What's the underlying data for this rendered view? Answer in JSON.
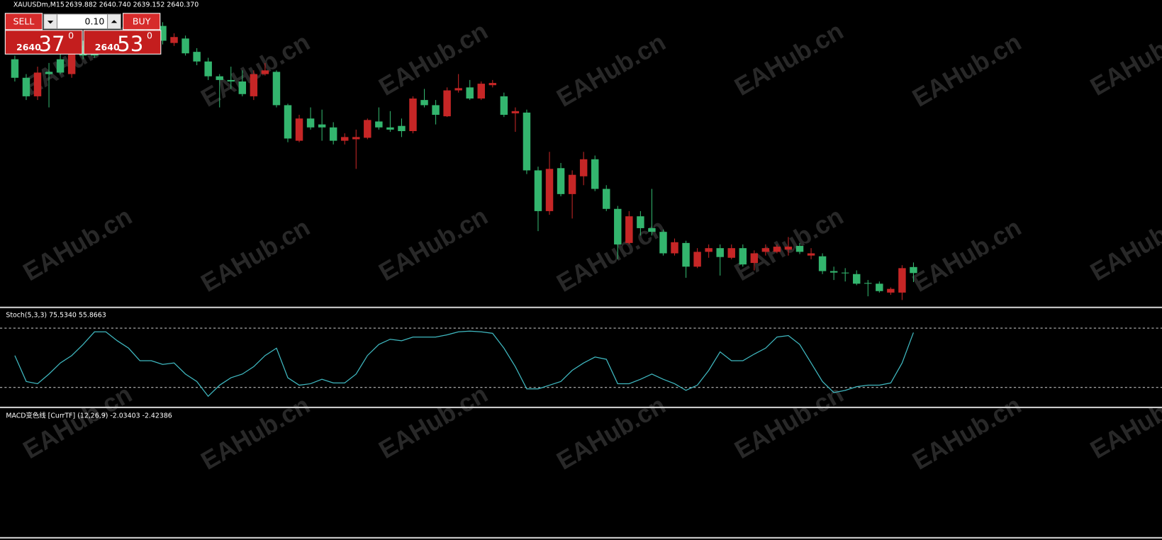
{
  "chart_data": {
    "type": "candlestick",
    "title": "XAUUSDm,M15",
    "ohlc_text": "2639.882 2640.740 2639.152 2640.370",
    "watermark": "EAHub.cn",
    "up_color": "#33b56e",
    "down_color": "#c62626",
    "ylim": [
      2637.4,
      2662
    ],
    "ohlc": [
      [
        2655.7,
        2657.5,
        2655.4,
        2657.2
      ],
      [
        2654.2,
        2656.0,
        2653.9,
        2655.7
      ],
      [
        2656.12,
        2656.6,
        2653.9,
        2654.2
      ],
      [
        2656.0,
        2656.9,
        2653.3,
        2656.18
      ],
      [
        2656.12,
        2658.4,
        2656.0,
        2657.2
      ],
      [
        2657.8,
        2658.4,
        2655.7,
        2656.0
      ],
      [
        2657.5,
        2658.7,
        2657.2,
        2658.28
      ],
      [
        2657.5,
        2658.7,
        2657.32,
        2658.4
      ],
      [
        2658.1,
        2659.0,
        2657.92,
        2658.7
      ],
      [
        2658.4,
        2659.3,
        2658.22,
        2659.0
      ],
      [
        2658.7,
        2659.6,
        2658.52,
        2659.3
      ],
      [
        2658.7,
        2660.08,
        2658.52,
        2659.6
      ],
      [
        2659.6,
        2660.2,
        2658.52,
        2658.7
      ],
      [
        2658.7,
        2660.2,
        2658.4,
        2659.9
      ],
      [
        2659.0,
        2659.3,
        2658.28,
        2658.52
      ],
      [
        2657.68,
        2659.12,
        2657.5,
        2658.88
      ],
      [
        2657.02,
        2658.1,
        2656.72,
        2657.8
      ],
      [
        2655.82,
        2657.32,
        2655.52,
        2657.02
      ],
      [
        2655.52,
        2656.0,
        2653.3,
        2655.82
      ],
      [
        2655.4,
        2656.6,
        2654.8,
        2655.52
      ],
      [
        2654.38,
        2656.3,
        2654.2,
        2655.4
      ],
      [
        2656.0,
        2656.3,
        2653.9,
        2654.2
      ],
      [
        2656.3,
        2656.9,
        2655.88,
        2656.0
      ],
      [
        2653.48,
        2656.3,
        2653.3,
        2656.18
      ],
      [
        2650.78,
        2653.6,
        2650.48,
        2653.48
      ],
      [
        2652.4,
        2652.7,
        2650.48,
        2650.6
      ],
      [
        2651.68,
        2653.3,
        2651.5,
        2652.4
      ],
      [
        2651.68,
        2653.12,
        2650.6,
        2651.92
      ],
      [
        2650.6,
        2652.1,
        2650.3,
        2651.68
      ],
      [
        2650.9,
        2651.2,
        2650.3,
        2650.6
      ],
      [
        2650.9,
        2651.5,
        2648.32,
        2650.72
      ],
      [
        2652.28,
        2652.4,
        2650.72,
        2650.84
      ],
      [
        2651.68,
        2653.3,
        2651.5,
        2652.16
      ],
      [
        2651.5,
        2653.0,
        2651.32,
        2651.68
      ],
      [
        2651.38,
        2652.4,
        2650.9,
        2651.8
      ],
      [
        2654.02,
        2654.2,
        2651.2,
        2651.38
      ],
      [
        2653.48,
        2654.8,
        2653.3,
        2653.9
      ],
      [
        2652.7,
        2653.9,
        2651.92,
        2653.48
      ],
      [
        2654.68,
        2654.92,
        2652.52,
        2652.58
      ],
      [
        2654.86,
        2656.0,
        2654.5,
        2654.68
      ],
      [
        2654.02,
        2655.52,
        2653.9,
        2654.92
      ],
      [
        2655.22,
        2655.4,
        2653.9,
        2654.02
      ],
      [
        2655.28,
        2655.52,
        2654.92,
        2655.1
      ],
      [
        2652.7,
        2654.5,
        2652.52,
        2654.2
      ],
      [
        2653.0,
        2653.3,
        2651.32,
        2652.82
      ],
      [
        2648.2,
        2653.12,
        2647.9,
        2652.88
      ],
      [
        2644.9,
        2648.5,
        2643.28,
        2648.2
      ],
      [
        2648.32,
        2649.7,
        2644.6,
        2644.9
      ],
      [
        2646.28,
        2648.8,
        2646.1,
        2648.38
      ],
      [
        2647.84,
        2648.2,
        2644.3,
        2646.28
      ],
      [
        2649.1,
        2649.7,
        2647.0,
        2647.72
      ],
      [
        2646.7,
        2649.4,
        2646.52,
        2649.1
      ],
      [
        2645.08,
        2647.0,
        2644.9,
        2646.7
      ],
      [
        2642.2,
        2645.32,
        2641.0,
        2645.08
      ],
      [
        2644.48,
        2644.9,
        2642.2,
        2642.32
      ],
      [
        2643.52,
        2644.9,
        2642.92,
        2644.48
      ],
      [
        2643.22,
        2646.7,
        2642.92,
        2643.52
      ],
      [
        2641.48,
        2643.4,
        2641.3,
        2643.22
      ],
      [
        2642.38,
        2642.68,
        2641.3,
        2641.48
      ],
      [
        2640.4,
        2642.5,
        2639.5,
        2642.32
      ],
      [
        2641.6,
        2641.9,
        2640.28,
        2640.4
      ],
      [
        2641.9,
        2642.2,
        2641.12,
        2641.6
      ],
      [
        2641.18,
        2642.2,
        2639.68,
        2641.9
      ],
      [
        2641.9,
        2642.2,
        2641.0,
        2641.12
      ],
      [
        2640.58,
        2642.2,
        2640.4,
        2641.9
      ],
      [
        2641.48,
        2641.72,
        2640.1,
        2640.7
      ],
      [
        2641.9,
        2642.2,
        2641.3,
        2641.6
      ],
      [
        2642.02,
        2642.2,
        2641.48,
        2641.6
      ],
      [
        2642.02,
        2642.8,
        2641.3,
        2641.78
      ],
      [
        2641.6,
        2642.32,
        2641.42,
        2642.08
      ],
      [
        2641.48,
        2641.9,
        2641.0,
        2641.3
      ],
      [
        2640.04,
        2641.48,
        2639.8,
        2641.24
      ],
      [
        2639.92,
        2640.4,
        2639.32,
        2640.04
      ],
      [
        2639.86,
        2640.28,
        2639.2,
        2639.92
      ],
      [
        2639.02,
        2640.1,
        2638.9,
        2639.8
      ],
      [
        2639.02,
        2639.32,
        2638.0,
        2639.08
      ],
      [
        2638.42,
        2639.2,
        2638.3,
        2639.02
      ],
      [
        2638.6,
        2638.72,
        2638.12,
        2638.3
      ],
      [
        2640.28,
        2640.52,
        2637.7,
        2638.3
      ],
      [
        2639.882,
        2640.74,
        2639.152,
        2640.37
      ]
    ],
    "stoch": {
      "label": "Stoch(5,3,3) 75.5340 55.8663",
      "color": "#3fb8c0",
      "ylim": [
        1.25,
        98.75
      ],
      "levels": [
        20,
        80
      ],
      "values": [
        52.25,
        26,
        23.75,
        33.5,
        44.75,
        52.25,
        63.5,
        76.25,
        76.25,
        67.25,
        59.75,
        47,
        47,
        43.25,
        44.75,
        33.5,
        26,
        11,
        22.25,
        29.75,
        33.5,
        41,
        52.25,
        59.75,
        29.75,
        22.25,
        23.75,
        28.25,
        24.5,
        24.5,
        33.5,
        52.25,
        63.5,
        68.75,
        67.25,
        71,
        71,
        71,
        73.25,
        76.25,
        77,
        76.25,
        74.75,
        59.75,
        41,
        18.5,
        18.5,
        22.25,
        26,
        37.25,
        44.75,
        50.75,
        48.5,
        23.75,
        23.75,
        28.25,
        33.5,
        28.25,
        23.75,
        17,
        22.25,
        37.25,
        56,
        47,
        47,
        53.75,
        59.75,
        71,
        72.5,
        63.5,
        44.75,
        26,
        14.75,
        17,
        20.75,
        22.25,
        22.25,
        24.5,
        44.75,
        75.534
      ]
    },
    "macd": {
      "label": "MACD变色线 [CurrTF] (12,26,9) -2.03403 -2.42386"
    },
    "trade_panel": {
      "sell": "SELL",
      "buy": "BUY",
      "lot": "0.10",
      "bid": {
        "big": "2640",
        "pips": "37",
        "frac": "0"
      },
      "ask": {
        "big": "2640",
        "pips": "53",
        "frac": "0"
      }
    }
  }
}
